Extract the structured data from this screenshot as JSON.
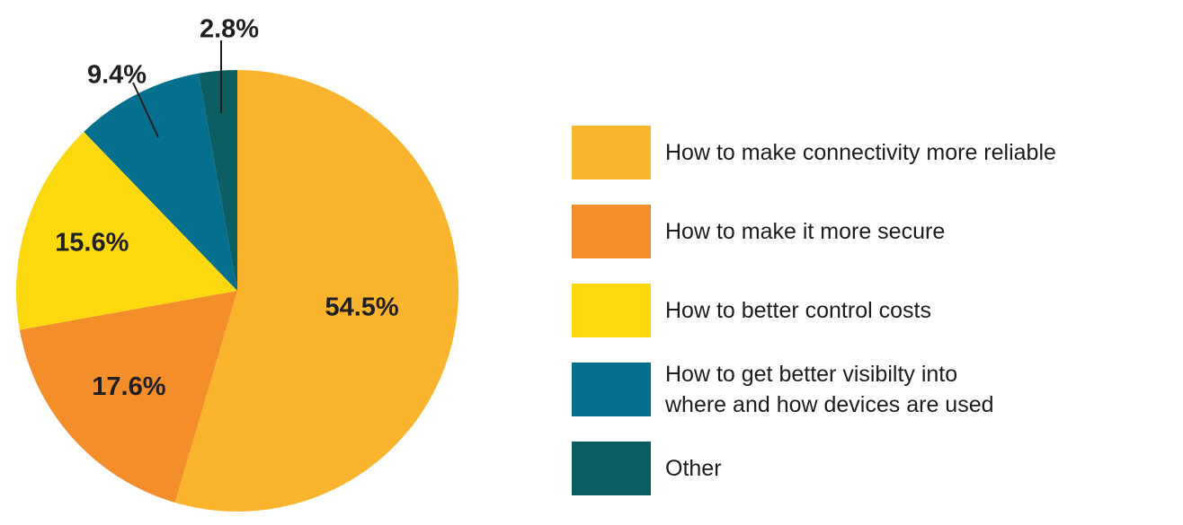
{
  "chart_data": {
    "type": "pie",
    "title": "",
    "slices": [
      {
        "label": "How to make connectivity more reliable",
        "value": 54.5,
        "display": "54.5%",
        "color": "#FBB42E"
      },
      {
        "label": "How to make it more secure",
        "value": 17.6,
        "display": "17.6%",
        "color": "#F48E2A"
      },
      {
        "label": "How to better control costs",
        "value": 15.6,
        "display": "15.6%",
        "color": "#FCD90F"
      },
      {
        "label": "How to get better visibilty into\nwhere and how devices are used",
        "value": 9.4,
        "display": "9.4%",
        "color": "#05708E"
      },
      {
        "label": "Other",
        "value": 2.8,
        "display": "2.8%",
        "color": "#0B5E62"
      }
    ],
    "legend_position": "right"
  }
}
